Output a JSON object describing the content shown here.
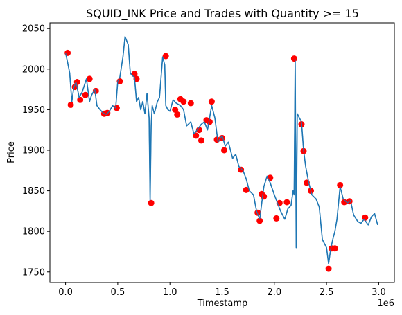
{
  "chart_data": {
    "type": "line",
    "title": "SQUID_INK Price and Trades with Quantity >= 15",
    "xlabel": "Timestamp",
    "ylabel": "Price",
    "x_offset_label": "1e6",
    "xlim": [
      -0.15,
      3.15
    ],
    "ylim": [
      1737,
      2057
    ],
    "x_ticks": [
      0.0,
      0.5,
      1.0,
      1.5,
      2.0,
      2.5,
      3.0
    ],
    "x_tick_labels": [
      "0.0",
      "0.5",
      "1.0",
      "1.5",
      "2.0",
      "2.5",
      "3.0"
    ],
    "y_ticks": [
      1750,
      1800,
      1850,
      1900,
      1950,
      2000,
      2050
    ],
    "y_tick_labels": [
      "1750",
      "1800",
      "1850",
      "1900",
      "1950",
      "2000",
      "2050"
    ],
    "grid": false,
    "colors": {
      "price_line": "#1f77b4",
      "trades": "#ff0000",
      "axes": "#000000"
    },
    "series": [
      {
        "type": "line",
        "x": [
          0.0,
          0.02,
          0.04,
          0.06,
          0.08,
          0.1,
          0.13,
          0.16,
          0.2,
          0.23,
          0.25,
          0.28,
          0.3,
          0.33,
          0.36,
          0.39,
          0.42,
          0.45,
          0.48,
          0.5,
          0.52,
          0.55,
          0.57,
          0.6,
          0.62,
          0.64,
          0.66,
          0.68,
          0.7,
          0.72,
          0.74,
          0.76,
          0.78,
          0.8,
          0.81,
          0.82,
          0.83,
          0.85,
          0.88,
          0.9,
          0.93,
          0.95,
          0.96,
          0.98,
          1.0,
          1.03,
          1.06,
          1.1,
          1.13,
          1.16,
          1.2,
          1.23,
          1.26,
          1.3,
          1.33,
          1.36,
          1.4,
          1.43,
          1.46,
          1.5,
          1.53,
          1.56,
          1.6,
          1.63,
          1.66,
          1.7,
          1.73,
          1.76,
          1.8,
          1.83,
          1.86,
          1.9,
          1.93,
          1.96,
          2.0,
          2.03,
          2.06,
          2.1,
          2.13,
          2.16,
          2.18,
          2.19,
          2.2,
          2.21,
          2.22,
          2.24,
          2.26,
          2.28,
          2.3,
          2.33,
          2.36,
          2.4,
          2.43,
          2.46,
          2.5,
          2.52,
          2.54,
          2.56,
          2.58,
          2.6,
          2.63,
          2.66,
          2.7,
          2.73,
          2.76,
          2.8,
          2.83,
          2.86,
          2.9,
          2.93,
          2.96,
          2.99
        ],
        "y": [
          2020,
          2008,
          1995,
          1960,
          1978,
          1984,
          1965,
          1972,
          1988,
          1960,
          1968,
          1975,
          1955,
          1950,
          1946,
          1944,
          1948,
          1955,
          1952,
          1985,
          1990,
          2015,
          2040,
          2030,
          1995,
          1992,
          1990,
          1960,
          1965,
          1950,
          1960,
          1945,
          1970,
          1940,
          1838,
          1930,
          1955,
          1945,
          1960,
          1965,
          2015,
          2005,
          1955,
          1950,
          1948,
          1962,
          1958,
          1955,
          1950,
          1930,
          1935,
          1920,
          1925,
          1932,
          1935,
          1925,
          1955,
          1940,
          1910,
          1918,
          1905,
          1910,
          1890,
          1895,
          1880,
          1875,
          1865,
          1850,
          1845,
          1825,
          1815,
          1855,
          1868,
          1860,
          1845,
          1835,
          1825,
          1815,
          1828,
          1832,
          1850,
          1845,
          2012,
          1780,
          1945,
          1940,
          1935,
          1900,
          1880,
          1860,
          1845,
          1840,
          1830,
          1790,
          1780,
          1760,
          1778,
          1790,
          1800,
          1815,
          1855,
          1840,
          1835,
          1838,
          1820,
          1812,
          1810,
          1815,
          1808,
          1818,
          1822,
          1808
        ]
      },
      {
        "type": "scatter",
        "x": [
          0.02,
          0.05,
          0.09,
          0.11,
          0.14,
          0.19,
          0.23,
          0.29,
          0.37,
          0.4,
          0.49,
          0.52,
          0.66,
          0.68,
          0.82,
          0.96,
          1.05,
          1.07,
          1.1,
          1.13,
          1.2,
          1.25,
          1.28,
          1.3,
          1.35,
          1.38,
          1.4,
          1.45,
          1.5,
          1.52,
          1.68,
          1.73,
          1.84,
          1.86,
          1.88,
          1.9,
          1.96,
          2.02,
          2.05,
          2.12,
          2.19,
          2.26,
          2.28,
          2.31,
          2.35,
          2.52,
          2.55,
          2.58,
          2.63,
          2.67,
          2.72,
          2.87
        ],
        "y": [
          2020,
          1956,
          1978,
          1984,
          1962,
          1968,
          1988,
          1973,
          1945,
          1946,
          1952,
          1985,
          1994,
          1988,
          1835,
          2016,
          1950,
          1944,
          1963,
          1960,
          1958,
          1918,
          1925,
          1912,
          1937,
          1935,
          1960,
          1913,
          1915,
          1900,
          1876,
          1851,
          1823,
          1813,
          1846,
          1843,
          1866,
          1816,
          1835,
          1836,
          2013,
          1932,
          1899,
          1860,
          1850,
          1754,
          1779,
          1779,
          1857,
          1836,
          1837,
          1817
        ]
      }
    ]
  }
}
